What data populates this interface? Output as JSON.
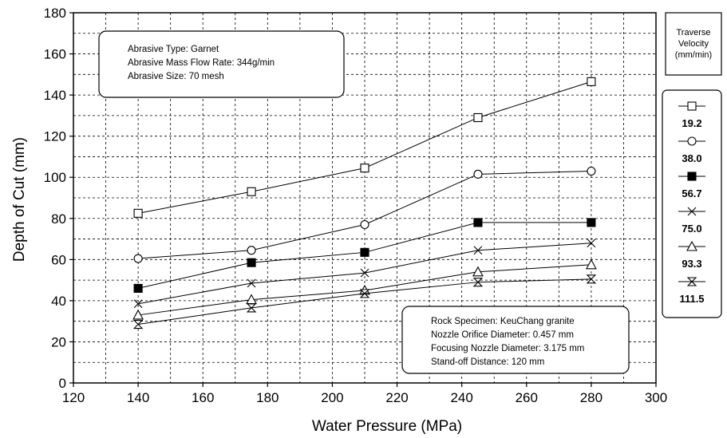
{
  "chart_data": {
    "type": "line",
    "xlabel": "Water Pressure (MPa)",
    "ylabel": "Depth of Cut (mm)",
    "xlim": [
      120,
      300
    ],
    "ylim": [
      0,
      180
    ],
    "xticks": [
      "120",
      "140",
      "160",
      "180",
      "200",
      "220",
      "240",
      "260",
      "280",
      "300"
    ],
    "yticks": [
      "0",
      "20",
      "40",
      "60",
      "80",
      "100",
      "120",
      "140",
      "160",
      "180"
    ],
    "grid": "dashed",
    "x": [
      140,
      175,
      210,
      245,
      280
    ],
    "series": [
      {
        "name": "19.2",
        "marker": "open-square",
        "values": [
          82.5,
          93,
          104.5,
          129,
          146.5
        ]
      },
      {
        "name": "38.0",
        "marker": "open-circle",
        "values": [
          60.5,
          64.5,
          77,
          101.5,
          103
        ]
      },
      {
        "name": "56.7",
        "marker": "filled-square",
        "values": [
          46,
          58.5,
          63.5,
          78,
          78
        ]
      },
      {
        "name": "75.0",
        "marker": "x-cross",
        "values": [
          38.5,
          48.5,
          53.5,
          64.5,
          68
        ]
      },
      {
        "name": "93.3",
        "marker": "open-triangle",
        "values": [
          33,
          40.5,
          45,
          54,
          57.5
        ]
      },
      {
        "name": "111.5",
        "marker": "hourglass",
        "values": [
          28.5,
          36.5,
          43.5,
          49,
          50.5
        ]
      }
    ],
    "legend": {
      "title_lines": [
        "Traverse",
        "Velocity",
        "(mm/min)"
      ],
      "placement": "right"
    },
    "annotations": {
      "abrasive": [
        "Abrasive Type: Garnet",
        "Abrasive Mass Flow Rate: 344g/min",
        "Abrasive Size: 70 mesh"
      ],
      "rock": [
        "Rock  Specimen: KeuChang granite",
        "Nozzle Orifice Diameter: 0.457 mm",
        "Focusing Nozzle Diameter: 3.175 mm",
        "Stand-off Distance: 120 mm"
      ]
    }
  }
}
